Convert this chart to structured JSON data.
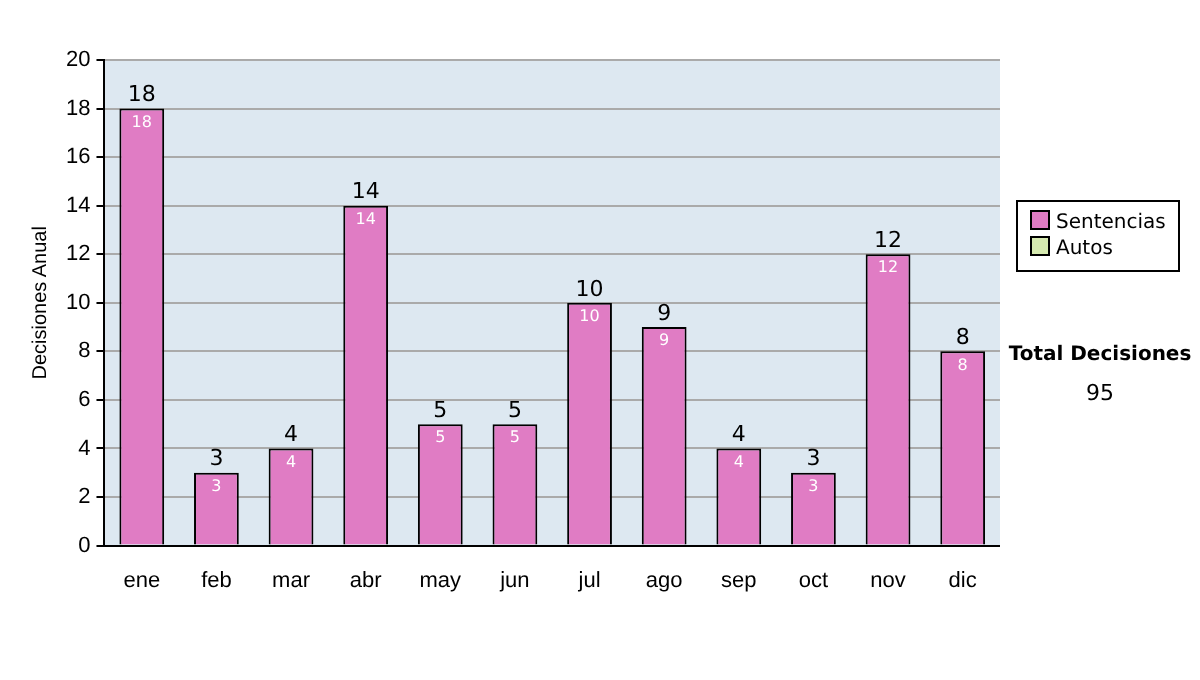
{
  "chart_data": {
    "type": "bar",
    "stacked": true,
    "ylabel": "Decisiones Anual",
    "categories": [
      "ene",
      "feb",
      "mar",
      "abr",
      "may",
      "jun",
      "jul",
      "ago",
      "sep",
      "oct",
      "nov",
      "dic"
    ],
    "series": [
      {
        "name": "Sentencias",
        "color": "#e07cc4",
        "values": [
          18,
          3,
          4,
          14,
          5,
          5,
          10,
          9,
          4,
          3,
          12,
          8
        ]
      },
      {
        "name": "Autos",
        "color": "#d6eab0",
        "values": [
          null,
          null,
          null,
          null,
          null,
          null,
          null,
          null,
          null,
          null,
          null,
          null
        ]
      }
    ],
    "data_labels": true,
    "totals": [
      "18",
      "3",
      "4",
      "14",
      "5",
      "5",
      "10",
      "9",
      "4",
      "3",
      "12",
      "8"
    ],
    "ylim": [
      0,
      20
    ],
    "yticks": [
      0,
      2,
      4,
      6,
      8,
      10,
      12,
      14,
      16,
      18,
      20
    ],
    "grid": "y",
    "legend": "right",
    "annotations": [
      "Total Decisiones",
      "95"
    ]
  }
}
